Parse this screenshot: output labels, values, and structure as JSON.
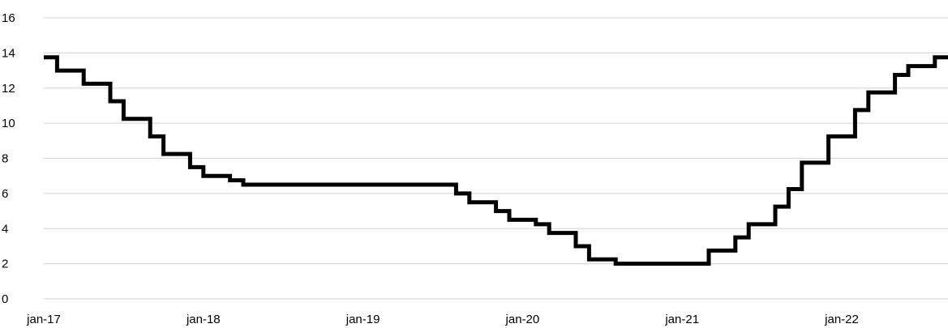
{
  "chart_data": {
    "type": "line",
    "step": true,
    "title": "",
    "xlabel": "",
    "ylabel": "",
    "ylim": [
      0,
      16
    ],
    "yticks": [
      0,
      2,
      4,
      6,
      8,
      10,
      12,
      14,
      16
    ],
    "xlim": [
      "2017-01",
      "2022-10"
    ],
    "xticks": [
      {
        "date": "2017-01",
        "label": "jan-17"
      },
      {
        "date": "2018-01",
        "label": "jan-18"
      },
      {
        "date": "2019-01",
        "label": "jan-19"
      },
      {
        "date": "2020-01",
        "label": "jan-20"
      },
      {
        "date": "2021-01",
        "label": "jan-21"
      },
      {
        "date": "2022-01",
        "label": "jan-22"
      }
    ],
    "grid": {
      "horizontal": true,
      "vertical": false
    },
    "colors": {
      "line": "#000000",
      "grid": "#d9d9d9"
    },
    "series": [
      {
        "steps": [
          {
            "date": "2017-01",
            "value": 13.75
          },
          {
            "date": "2017-02",
            "value": 13.0
          },
          {
            "date": "2017-04",
            "value": 12.25
          },
          {
            "date": "2017-06",
            "value": 11.25
          },
          {
            "date": "2017-07",
            "value": 10.25
          },
          {
            "date": "2017-09",
            "value": 9.25
          },
          {
            "date": "2017-10",
            "value": 8.25
          },
          {
            "date": "2017-12",
            "value": 7.5
          },
          {
            "date": "2018-01",
            "value": 7.0
          },
          {
            "date": "2018-03",
            "value": 6.75
          },
          {
            "date": "2018-04",
            "value": 6.5
          },
          {
            "date": "2019-08",
            "value": 6.0
          },
          {
            "date": "2019-09",
            "value": 5.5
          },
          {
            "date": "2019-11",
            "value": 5.0
          },
          {
            "date": "2019-12",
            "value": 4.5
          },
          {
            "date": "2020-02",
            "value": 4.25
          },
          {
            "date": "2020-03",
            "value": 3.75
          },
          {
            "date": "2020-05",
            "value": 3.0
          },
          {
            "date": "2020-06",
            "value": 2.25
          },
          {
            "date": "2020-08",
            "value": 2.0
          },
          {
            "date": "2021-03",
            "value": 2.75
          },
          {
            "date": "2021-05",
            "value": 3.5
          },
          {
            "date": "2021-06",
            "value": 4.25
          },
          {
            "date": "2021-08",
            "value": 5.25
          },
          {
            "date": "2021-09",
            "value": 6.25
          },
          {
            "date": "2021-10",
            "value": 7.75
          },
          {
            "date": "2021-12",
            "value": 9.25
          },
          {
            "date": "2022-02",
            "value": 10.75
          },
          {
            "date": "2022-03",
            "value": 11.75
          },
          {
            "date": "2022-05",
            "value": 12.75
          },
          {
            "date": "2022-06",
            "value": 13.25
          },
          {
            "date": "2022-08",
            "value": 13.75
          }
        ]
      }
    ]
  }
}
